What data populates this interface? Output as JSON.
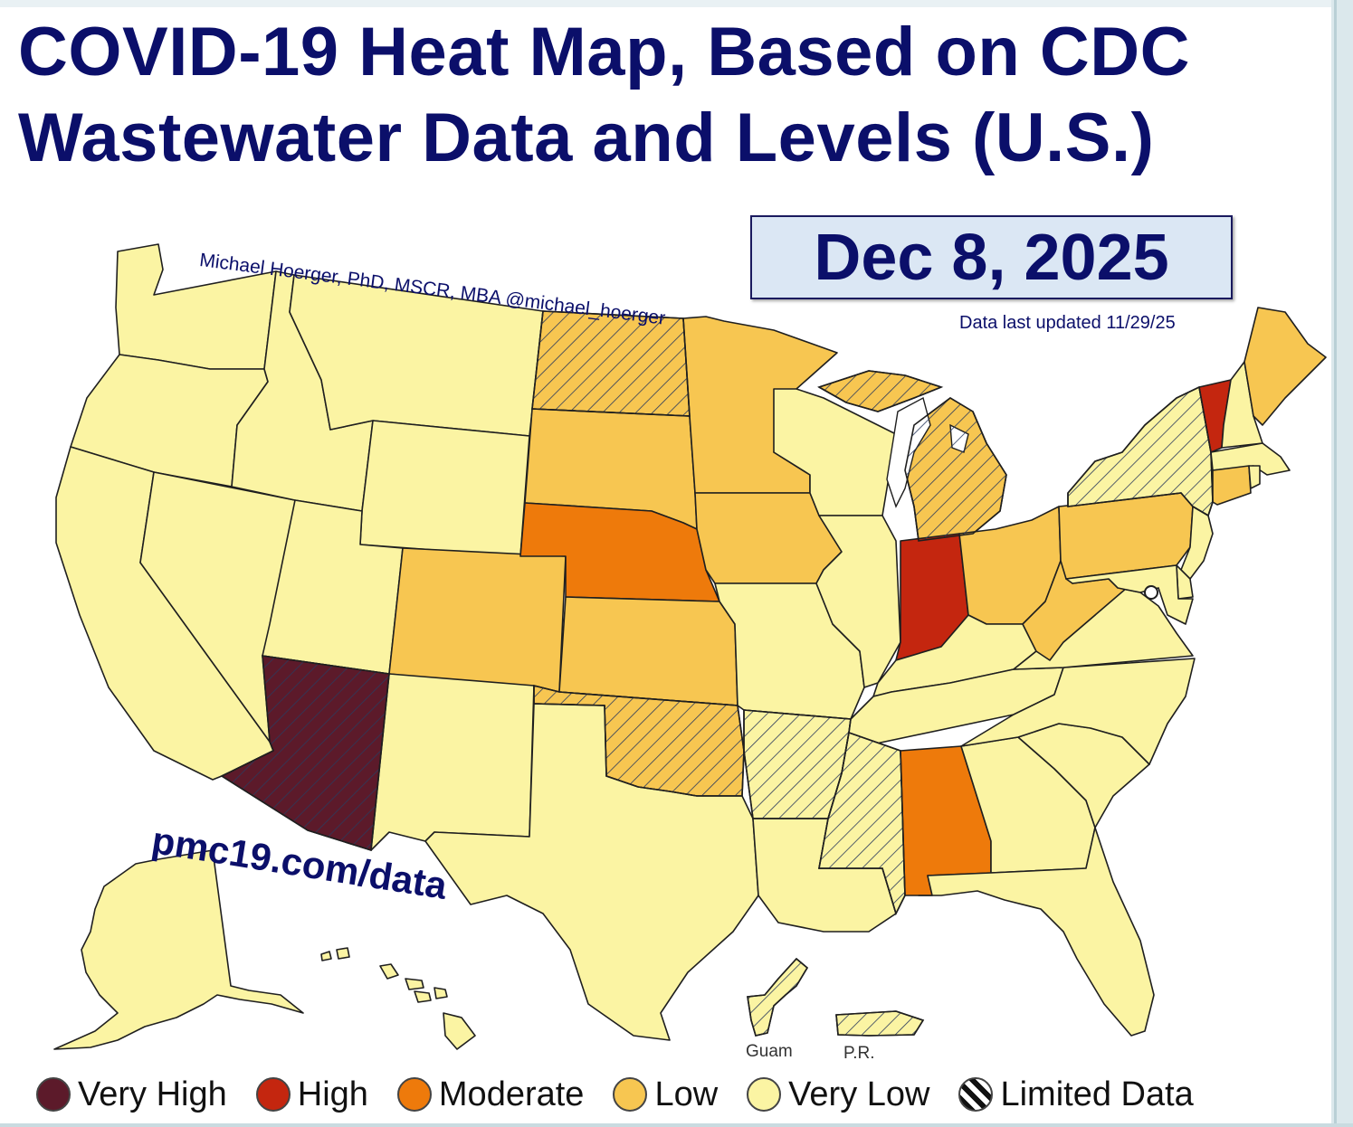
{
  "title_line1": "COVID-19 Heat Map, Based on CDC",
  "title_line2": "Wastewater Data and Levels (U.S.)",
  "date": "Dec 8, 2025",
  "updated": "Data last updated 11/29/25",
  "author": "Michael Hoerger, PhD, MSCR, MBA  @michael_hoerger",
  "website": "pmc19.com/data",
  "territories": {
    "guam": "Guam",
    "pr": "P.R."
  },
  "colors": {
    "very_high": "#5c1a2a",
    "high": "#c4260f",
    "moderate": "#ee7a0b",
    "low": "#f7c651",
    "very_low": "#fbf4a3",
    "border": "#1f1f1f",
    "title": "#0b0f6a"
  },
  "legend": [
    {
      "label": "Very High",
      "level": "very_high"
    },
    {
      "label": "High",
      "level": "high"
    },
    {
      "label": "Moderate",
      "level": "moderate"
    },
    {
      "label": "Low",
      "level": "low"
    },
    {
      "label": "Very Low",
      "level": "very_low"
    },
    {
      "label": "Limited Data",
      "level": "limited"
    }
  ],
  "states": {
    "WA": {
      "level": "very_low",
      "limited": false
    },
    "OR": {
      "level": "very_low",
      "limited": false
    },
    "CA": {
      "level": "very_low",
      "limited": false
    },
    "NV": {
      "level": "very_low",
      "limited": false
    },
    "ID": {
      "level": "very_low",
      "limited": false
    },
    "MT": {
      "level": "very_low",
      "limited": false
    },
    "WY": {
      "level": "very_low",
      "limited": false
    },
    "UT": {
      "level": "very_low",
      "limited": false
    },
    "AZ": {
      "level": "very_high",
      "limited": true
    },
    "CO": {
      "level": "low",
      "limited": false
    },
    "NM": {
      "level": "very_low",
      "limited": false
    },
    "ND": {
      "level": "low",
      "limited": true
    },
    "SD": {
      "level": "low",
      "limited": false
    },
    "NE": {
      "level": "moderate",
      "limited": false
    },
    "KS": {
      "level": "low",
      "limited": false
    },
    "OK": {
      "level": "low",
      "limited": true
    },
    "TX": {
      "level": "very_low",
      "limited": false
    },
    "MN": {
      "level": "low",
      "limited": false
    },
    "IA": {
      "level": "low",
      "limited": false
    },
    "MO": {
      "level": "very_low",
      "limited": false
    },
    "AR": {
      "level": "very_low",
      "limited": true
    },
    "LA": {
      "level": "very_low",
      "limited": false
    },
    "WI": {
      "level": "very_low",
      "limited": false
    },
    "IL": {
      "level": "very_low",
      "limited": false
    },
    "MI": {
      "level": "low",
      "limited": true
    },
    "IN": {
      "level": "high",
      "limited": false
    },
    "OH": {
      "level": "low",
      "limited": false
    },
    "KY": {
      "level": "very_low",
      "limited": false
    },
    "TN": {
      "level": "very_low",
      "limited": false
    },
    "MS": {
      "level": "very_low",
      "limited": true
    },
    "AL": {
      "level": "moderate",
      "limited": false
    },
    "GA": {
      "level": "very_low",
      "limited": false
    },
    "FL": {
      "level": "very_low",
      "limited": false
    },
    "SC": {
      "level": "very_low",
      "limited": false
    },
    "NC": {
      "level": "very_low",
      "limited": false
    },
    "VA": {
      "level": "very_low",
      "limited": false
    },
    "WV": {
      "level": "low",
      "limited": false
    },
    "PA": {
      "level": "low",
      "limited": false
    },
    "NY": {
      "level": "very_low",
      "limited": true
    },
    "VT": {
      "level": "high",
      "limited": false
    },
    "NH": {
      "level": "very_low",
      "limited": false
    },
    "ME": {
      "level": "low",
      "limited": false
    },
    "MA": {
      "level": "very_low",
      "limited": false
    },
    "CT": {
      "level": "low",
      "limited": false
    },
    "RI": {
      "level": "very_low",
      "limited": false
    },
    "NJ": {
      "level": "very_low",
      "limited": false
    },
    "DE": {
      "level": "very_low",
      "limited": false
    },
    "MD": {
      "level": "very_low",
      "limited": false
    },
    "AK": {
      "level": "very_low",
      "limited": false
    },
    "HI": {
      "level": "very_low",
      "limited": false
    },
    "GU": {
      "level": "very_low",
      "limited": true
    },
    "PR": {
      "level": "very_low",
      "limited": true
    }
  }
}
